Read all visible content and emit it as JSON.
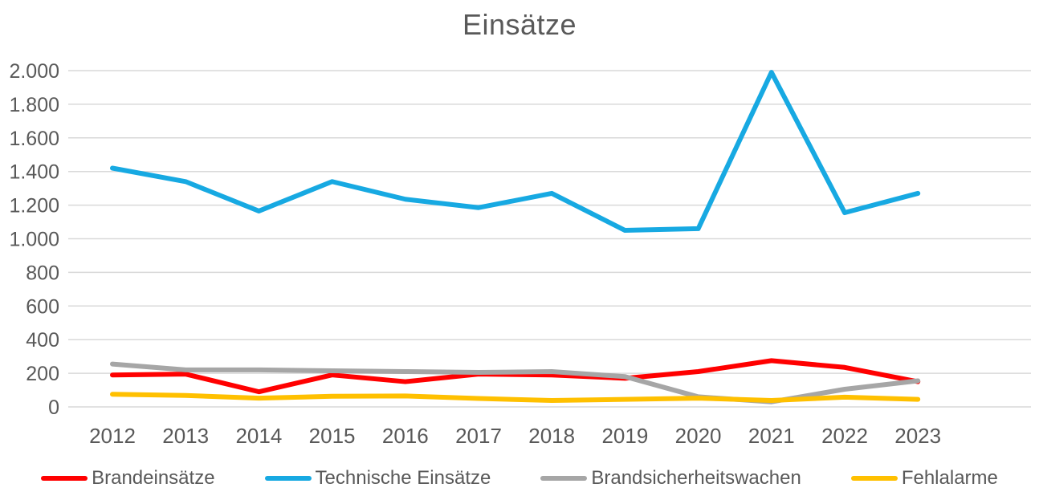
{
  "title": "Einsätze",
  "colors": {
    "text": "#595959",
    "gridline": "#D9D9D9",
    "background": "#FFFFFF"
  },
  "chart_data": {
    "type": "line",
    "title": "Einsätze",
    "categories": [
      "2012",
      "2013",
      "2014",
      "2015",
      "2016",
      "2017",
      "2018",
      "2019",
      "2020",
      "2021",
      "2022",
      "2023"
    ],
    "series": [
      {
        "name": "Brandeinsätze",
        "color": "#FF0000",
        "values": [
          190,
          195,
          90,
          190,
          150,
          195,
          190,
          170,
          210,
          275,
          235,
          150
        ]
      },
      {
        "name": "Technische Einsätze",
        "color": "#17A9E2",
        "values": [
          1420,
          1340,
          1165,
          1340,
          1235,
          1185,
          1270,
          1050,
          1060,
          1990,
          1155,
          1270
        ]
      },
      {
        "name": "Brandsicherheitswachen",
        "color": "#A6A6A6",
        "values": [
          255,
          220,
          220,
          215,
          210,
          205,
          210,
          180,
          60,
          30,
          105,
          155
        ]
      },
      {
        "name": "Fehlalarme",
        "color": "#FFC000",
        "values": [
          75,
          68,
          52,
          63,
          65,
          50,
          38,
          45,
          52,
          38,
          58,
          45
        ]
      }
    ],
    "ylim": [
      0,
      2000
    ],
    "yticks": [
      0,
      200,
      400,
      600,
      800,
      1000,
      1200,
      1400,
      1600,
      1800,
      2000
    ],
    "ytick_labels": [
      "0",
      "200",
      "400",
      "600",
      "800",
      "1.000",
      "1.200",
      "1.400",
      "1.600",
      "1.800",
      "2.000"
    ],
    "xlabel": "",
    "ylabel": "",
    "grid": true,
    "legend_position": "bottom",
    "line_width": 6
  }
}
